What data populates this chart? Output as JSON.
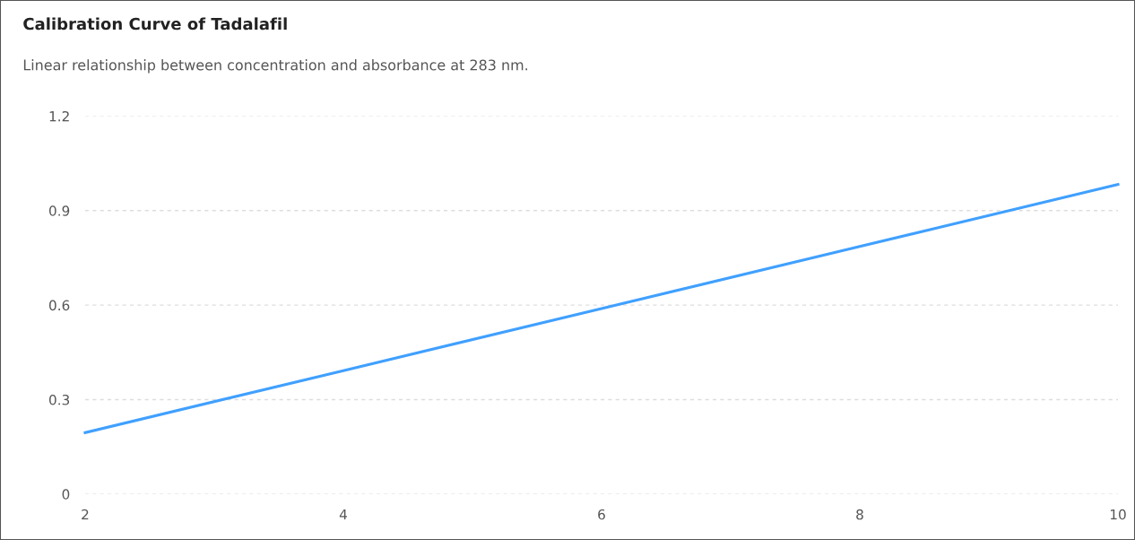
{
  "chart_data": {
    "type": "line",
    "title": "Calibration Curve of Tadalafil",
    "subtitle": "Linear relationship between concentration and absorbance at 283 nm.",
    "x": [
      2,
      4,
      6,
      8,
      10
    ],
    "series": [
      {
        "color": "#40a0ff",
        "values": [
          0.195,
          0.392,
          0.589,
          0.786,
          0.983
        ]
      }
    ],
    "xlim": [
      2,
      10
    ],
    "xticks": [
      2,
      4,
      6,
      8,
      10
    ],
    "ylim": [
      0,
      1.2
    ],
    "yticks": [
      0,
      0.3,
      0.6,
      0.9,
      1.2
    ],
    "grid": "y"
  }
}
